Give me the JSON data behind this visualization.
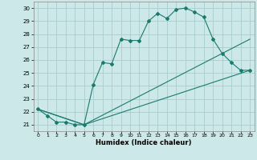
{
  "xlabel": "Humidex (Indice chaleur)",
  "bg_color": "#cce8e8",
  "grid_color": "#aacccc",
  "line_color": "#1a7a6e",
  "xlim": [
    -0.5,
    23.5
  ],
  "ylim": [
    20.5,
    30.5
  ],
  "xticks": [
    0,
    1,
    2,
    3,
    4,
    5,
    6,
    7,
    8,
    9,
    10,
    11,
    12,
    13,
    14,
    15,
    16,
    17,
    18,
    19,
    20,
    21,
    22,
    23
  ],
  "yticks": [
    21,
    22,
    23,
    24,
    25,
    26,
    27,
    28,
    29,
    30
  ],
  "line1_x": [
    0,
    1,
    2,
    3,
    4,
    5,
    6,
    7,
    8,
    9,
    10,
    11,
    12,
    13,
    14,
    15,
    16,
    17,
    18,
    19,
    20,
    21,
    22,
    23
  ],
  "line1_y": [
    22.2,
    21.7,
    21.2,
    21.2,
    21.0,
    21.0,
    24.1,
    25.8,
    25.7,
    27.6,
    27.5,
    27.5,
    29.0,
    29.6,
    29.2,
    29.9,
    30.0,
    29.7,
    29.3,
    27.6,
    26.5,
    25.8,
    25.2,
    25.2
  ],
  "line2_x": [
    0,
    5,
    23
  ],
  "line2_y": [
    22.2,
    21.0,
    25.2
  ],
  "line3_x": [
    0,
    5,
    23
  ],
  "line3_y": [
    22.2,
    21.0,
    27.6
  ]
}
